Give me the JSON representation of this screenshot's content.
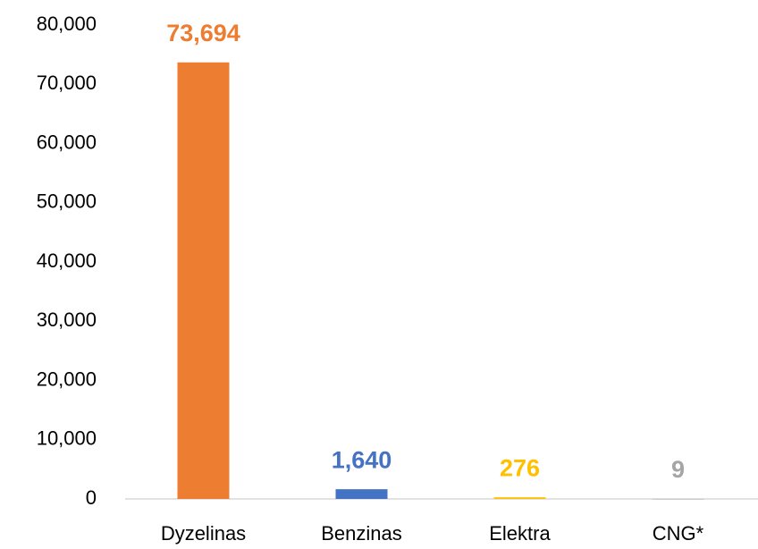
{
  "chart_data": {
    "type": "bar",
    "categories": [
      "Dyzelinas",
      "Benzinas",
      "Elektra",
      "CNG*"
    ],
    "values": [
      73694,
      1640,
      276,
      9
    ],
    "value_labels": [
      "73,694",
      "1,640",
      "276",
      "9"
    ],
    "colors": [
      "#ED7D31",
      "#4472C4",
      "#FFC000",
      "#A5A5A5"
    ],
    "ylim": [
      0,
      80000
    ],
    "yticks": [
      0,
      {
        "value": 10000,
        "label": "10,000"
      },
      {
        "value": 20000,
        "label": "20,000"
      },
      {
        "value": 30000,
        "label": "30,000"
      },
      {
        "value": 40000,
        "label": "40,000"
      },
      {
        "value": 50000,
        "label": "50,000"
      },
      {
        "value": 60000,
        "label": "60,000"
      },
      {
        "value": 70000,
        "label": "70,000"
      },
      {
        "value": 80000,
        "label": "80,000"
      }
    ],
    "grid": false
  }
}
